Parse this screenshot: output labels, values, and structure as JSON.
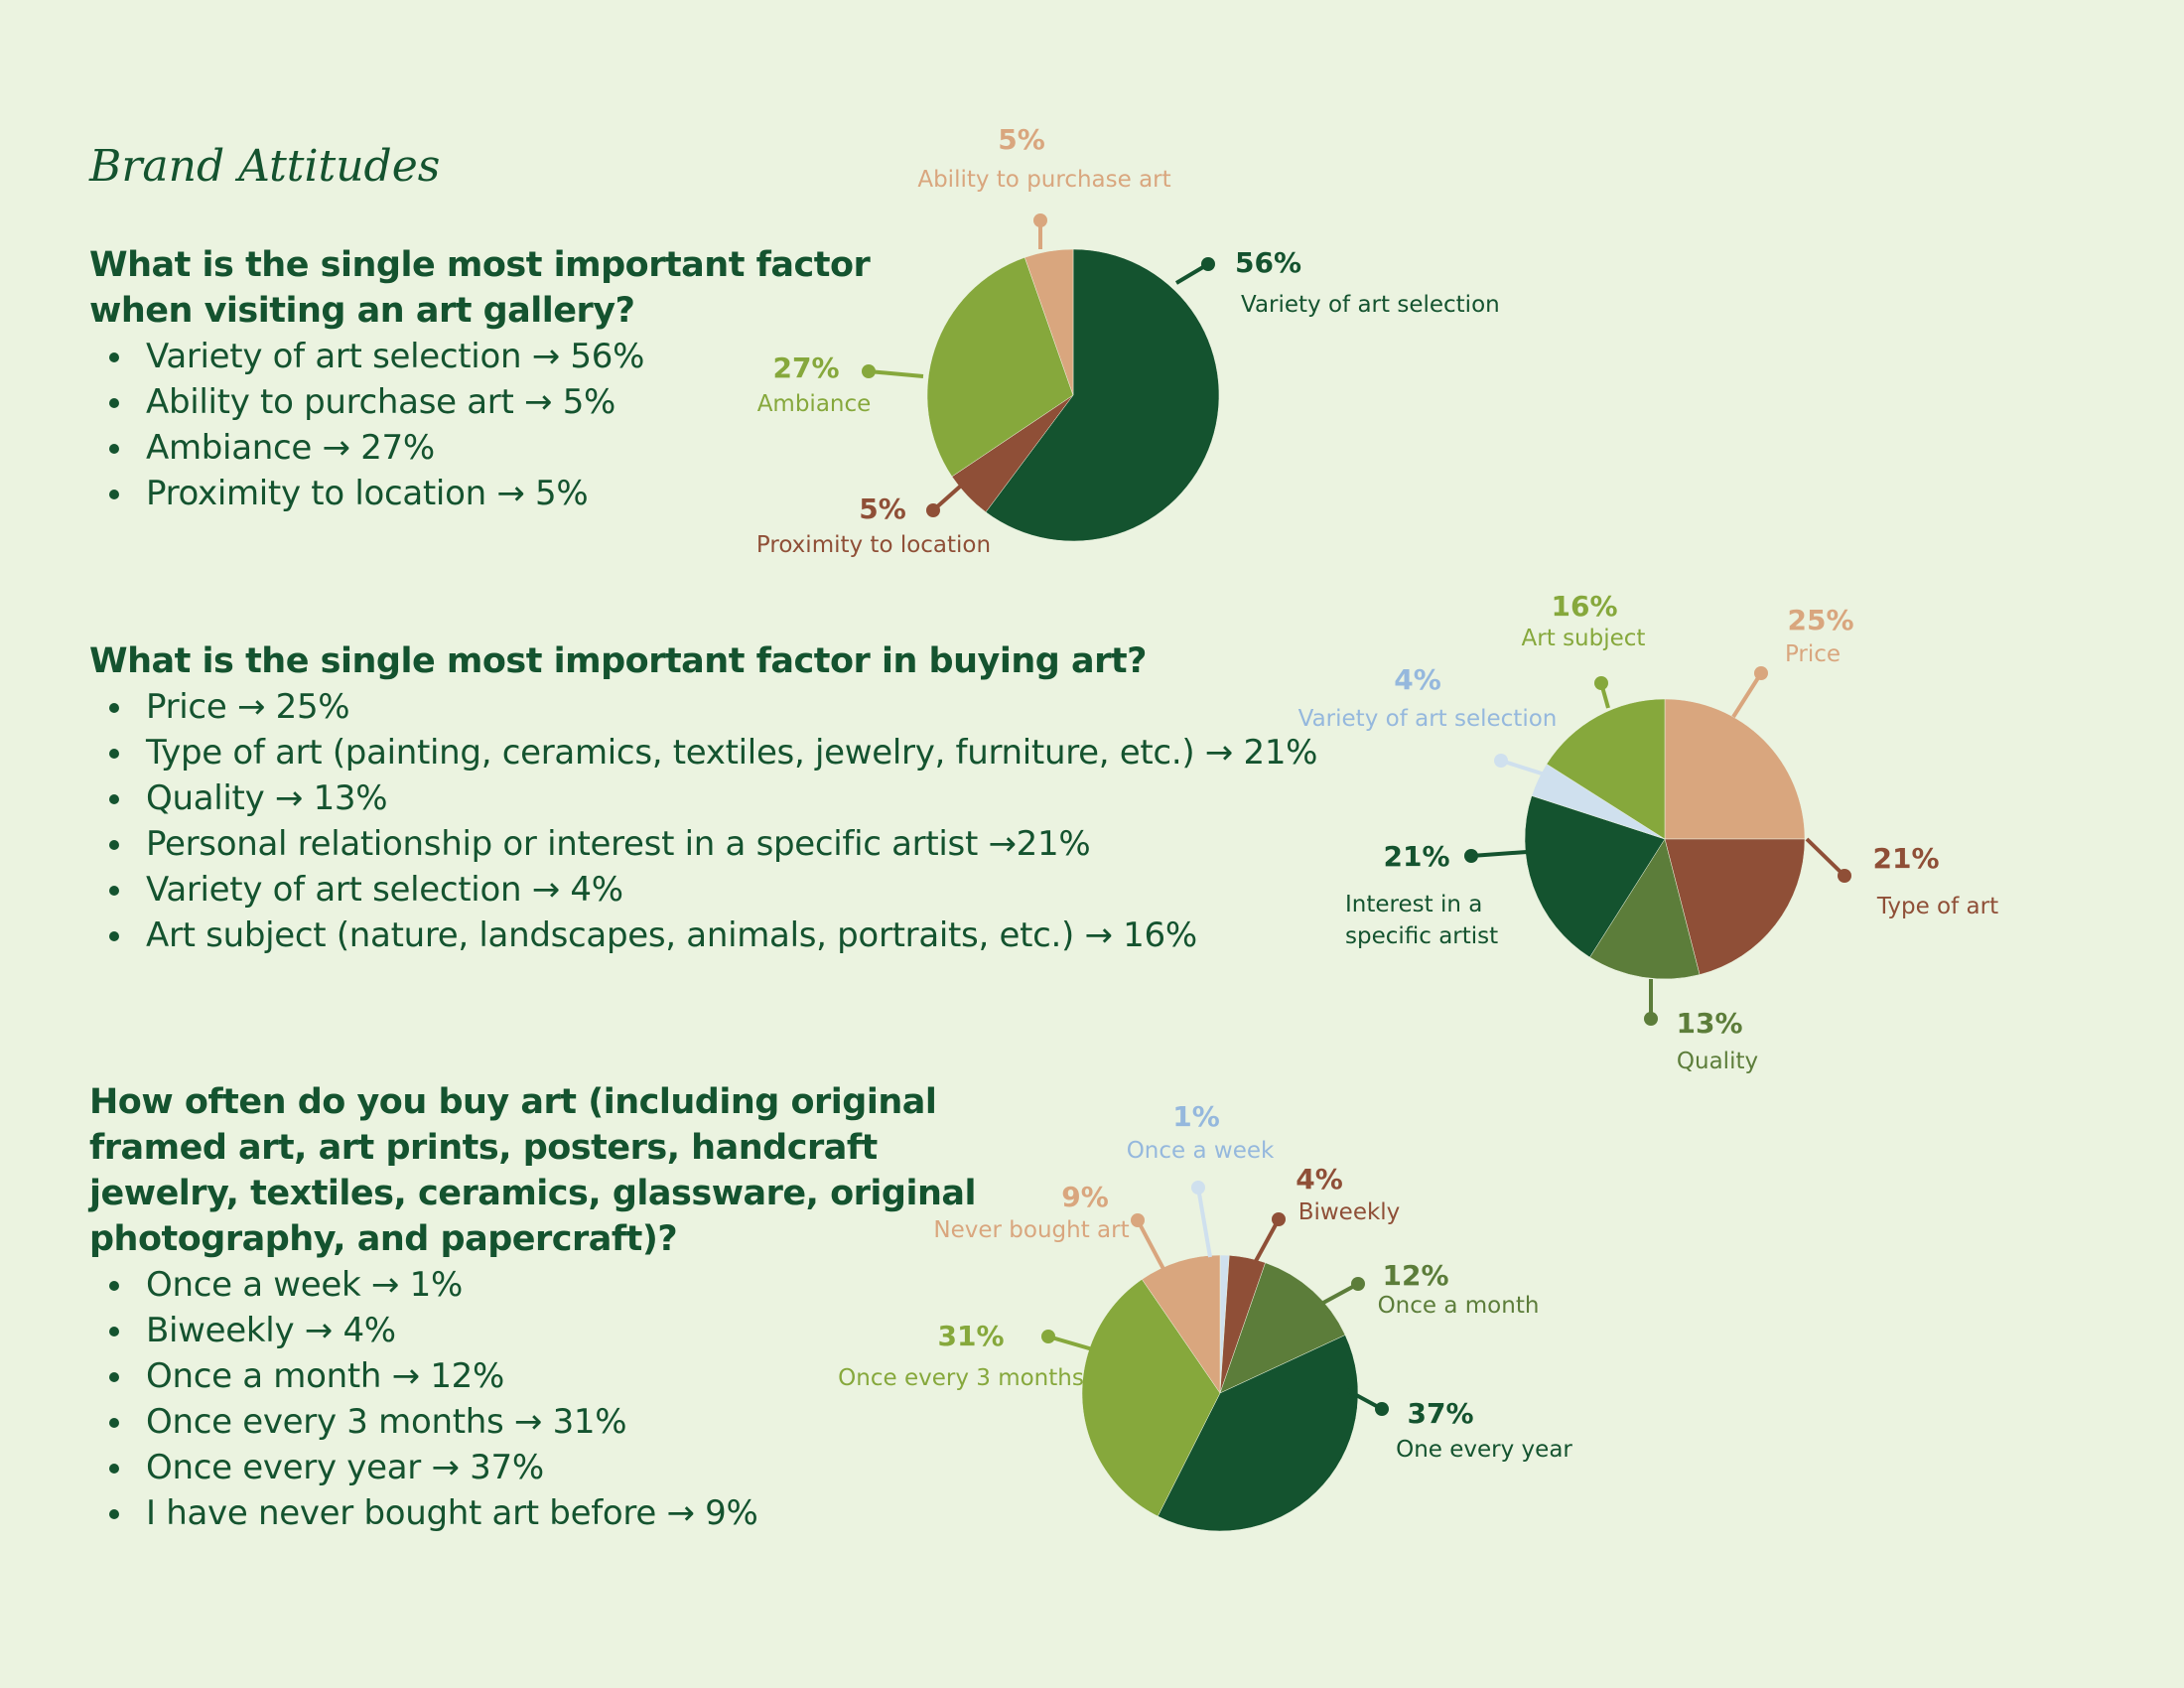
{
  "page": {
    "title": "Brand Attitudes"
  },
  "colors": {
    "dark_green": "#14532f",
    "light_green": "#86a83c",
    "mid_green": "#5c7d3a",
    "tan": "#d9a67e",
    "rust": "#8f4f37",
    "pale_blue": "#cfe0ee",
    "blue_label": "#95b8dd",
    "background": "#ebf3e0"
  },
  "questions": [
    {
      "question": "What is the single most important factor when visiting an art gallery?",
      "answers": [
        "Variety of art selection → 56%",
        "Ability to purchase art → 5%",
        "Ambiance → 27%",
        "Proximity to location → 5%"
      ]
    },
    {
      "question": "What is the single most important factor in buying art?",
      "answers": [
        "Price → 25%",
        "Type of art (painting, ceramics, textiles, jewelry, furniture, etc.) → 21%",
        "Quality → 13%",
        "Personal relationship or interest in a specific artist →21%",
        "Variety of art selection → 4%",
        "Art subject (nature, landscapes, animals, portraits, etc.) → 16%"
      ]
    },
    {
      "question": "How often do you buy art (including original framed art, art prints, posters, handcraft jewelry, textiles, ceramics, glassware, original photography, and papercraft)?",
      "answers": [
        "Once a week → 1%",
        "Biweekly → 4%",
        "Once a month → 12%",
        "Once every 3 months → 31%",
        "Once every year → 37%",
        "I have never bought art before → 9%"
      ]
    }
  ],
  "chart_data": [
    {
      "type": "pie",
      "categories": [
        "Variety of art selection",
        "Proximity to location",
        "Ambiance",
        "Ability to purchase art"
      ],
      "values": [
        56,
        5,
        27,
        5
      ],
      "value_labels": [
        "56%",
        "5%",
        "27%",
        "5%"
      ],
      "colors": [
        "#14532f",
        "#8f4f37",
        "#86a83c",
        "#d9a67e"
      ],
      "label_colors": [
        "#14532f",
        "#8f4f37",
        "#86a83c",
        "#d9a67e"
      ],
      "start_angle_deg": 0,
      "direction": "clockwise"
    },
    {
      "type": "pie",
      "categories": [
        "Price",
        "Type of art",
        "Quality",
        "Interest in a specific artist",
        "Variety of art selection",
        "Art subject"
      ],
      "values": [
        25,
        21,
        13,
        21,
        4,
        16
      ],
      "value_labels": [
        "25%",
        "21%",
        "13%",
        "21%",
        "4%",
        "16%"
      ],
      "colors": [
        "#d9a67e",
        "#8f4f37",
        "#5c7d3a",
        "#14532f",
        "#cfe0ee",
        "#86a83c"
      ],
      "label_colors": [
        "#d9a67e",
        "#8f4f37",
        "#5c7d3a",
        "#14532f",
        "#95b8dd",
        "#86a83c"
      ],
      "start_angle_deg": 0,
      "direction": "clockwise"
    },
    {
      "type": "pie",
      "categories": [
        "Once a week",
        "Biweekly",
        "Once a month",
        "One every year",
        "Once every 3 months",
        "Never bought art"
      ],
      "values": [
        1,
        4,
        12,
        37,
        31,
        9
      ],
      "value_labels": [
        "1%",
        "4%",
        "12%",
        "37%",
        "31%",
        "9%"
      ],
      "colors": [
        "#cfe0ee",
        "#8f4f37",
        "#5c7d3a",
        "#14532f",
        "#86a83c",
        "#d9a67e"
      ],
      "label_colors": [
        "#95b8dd",
        "#8f4f37",
        "#5c7d3a",
        "#14532f",
        "#86a83c",
        "#d9a67e"
      ],
      "start_angle_deg": 0,
      "direction": "clockwise"
    }
  ]
}
